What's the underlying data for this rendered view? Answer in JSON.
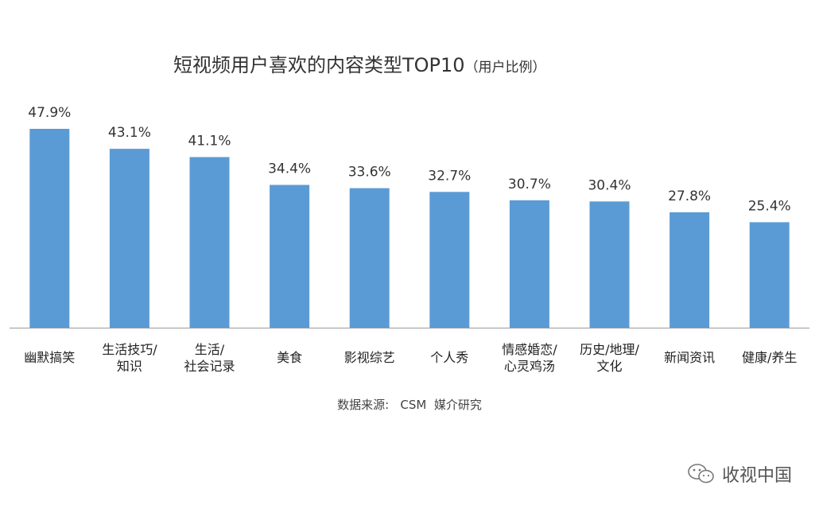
{
  "title": "短视频用户喜欢的内容类型TOP10",
  "title_unit": "（用户比例）",
  "source": "数据来源:   CSM  媒介研究",
  "watermark": "收视中国",
  "watermark_icon": "wechat-icon",
  "colors": {
    "bar": "#5b9bd5",
    "axis": "#999999"
  },
  "chart_data": {
    "type": "bar",
    "title": "短视频用户喜欢的内容类型TOP10（用户比例）",
    "xlabel": "",
    "ylabel": "",
    "ylim": [
      0,
      50
    ],
    "grid": false,
    "legend": "none",
    "categories": [
      "幽默搞笑",
      "生活技巧/\n知识",
      "生活/\n社会记录",
      "美食",
      "影视综艺",
      "个人秀",
      "情感婚恋/\n心灵鸡汤",
      "历史/地理/\n文化",
      "新闻资讯",
      "健康/养生"
    ],
    "values": [
      47.9,
      43.1,
      41.1,
      34.4,
      33.6,
      32.7,
      30.7,
      30.4,
      27.8,
      25.4
    ],
    "value_labels": [
      "47.9%",
      "43.1%",
      "41.1%",
      "34.4%",
      "33.6%",
      "32.7%",
      "30.7%",
      "30.4%",
      "27.8%",
      "25.4%"
    ]
  }
}
